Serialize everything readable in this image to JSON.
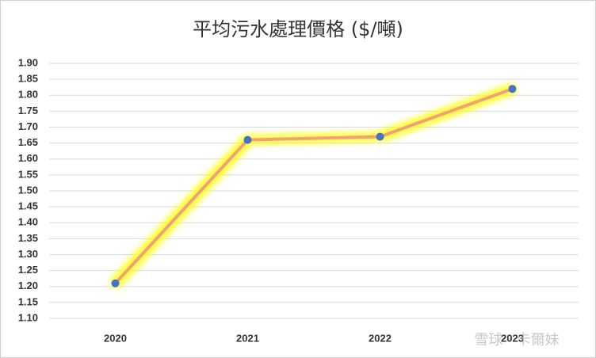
{
  "chart_data": {
    "type": "line",
    "title": "平均污水處理價格 ($/噸)",
    "categories": [
      "2020",
      "2021",
      "2022",
      "2023"
    ],
    "series": [
      {
        "name": "平均污水處理價格",
        "color": "#f2a07b",
        "marker_color": "#4472c4",
        "values": [
          1.21,
          1.66,
          1.67,
          1.82
        ]
      }
    ],
    "ylim": [
      1.1,
      1.9
    ],
    "yticks": [
      {
        "value": 1.1,
        "label": "1.10"
      },
      1.15,
      {
        "value": 1.2,
        "label": "1.20"
      },
      1.25,
      {
        "value": 1.3,
        "label": "1.30"
      },
      1.35,
      {
        "value": 1.4,
        "label": "1.40"
      },
      1.45,
      {
        "value": 1.5,
        "label": "1.50"
      },
      1.55,
      {
        "value": 1.6,
        "label": "1.60"
      },
      1.65,
      {
        "value": 1.7,
        "label": "1.70"
      },
      1.75,
      {
        "value": 1.8,
        "label": "1.80"
      },
      1.85,
      {
        "value": 1.9,
        "label": "1.90"
      }
    ],
    "grid": true,
    "legend": false,
    "watermark": "雪球 · 卡爾妹"
  }
}
